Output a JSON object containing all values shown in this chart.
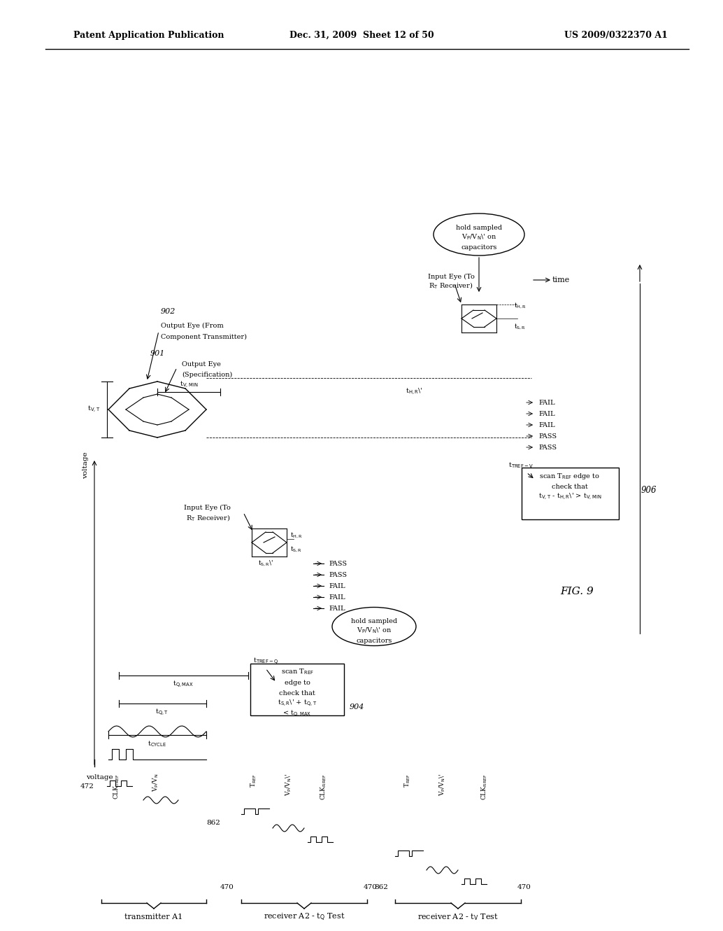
{
  "header_left": "Patent Application Publication",
  "header_mid": "Dec. 31, 2009  Sheet 12 of 50",
  "header_right": "US 2009/0322370 A1",
  "fig_label": "FIG. 9",
  "bg_color": "#ffffff",
  "text_color": "#000000"
}
